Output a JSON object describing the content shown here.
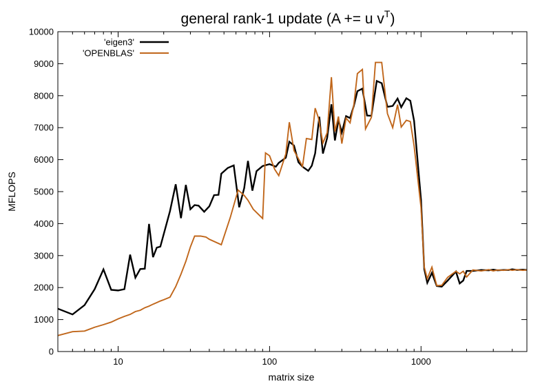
{
  "chart_data": {
    "type": "line",
    "title": "general rank-1 update (A += u v",
    "title_superscript": "T",
    "title_suffix": ")",
    "xlabel": "matrix size",
    "ylabel": "MFLOPS",
    "x_scale": "log",
    "xlim": [
      4,
      5000
    ],
    "ylim": [
      0,
      10000
    ],
    "x_major_ticks": [
      10,
      100,
      1000
    ],
    "x_tick_labels": [
      "10",
      "100",
      "1000"
    ],
    "y_ticks": [
      0,
      1000,
      2000,
      3000,
      4000,
      5000,
      6000,
      7000,
      8000,
      9000,
      10000
    ],
    "y_tick_labels": [
      "0",
      "1000",
      "2000",
      "3000",
      "4000",
      "5000",
      "6000",
      "7000",
      "8000",
      "9000",
      "10000"
    ],
    "grid": false,
    "legend_position": "top-left",
    "series": [
      {
        "name": "'eigen3'",
        "color": "#000000",
        "points": [
          [
            4,
            1340
          ],
          [
            5,
            1160
          ],
          [
            6,
            1450
          ],
          [
            7,
            1950
          ],
          [
            8,
            2570
          ],
          [
            9,
            1930
          ],
          [
            10,
            1910
          ],
          [
            11,
            1950
          ],
          [
            12,
            3030
          ],
          [
            13,
            2310
          ],
          [
            14,
            2580
          ],
          [
            15,
            2590
          ],
          [
            16,
            3990
          ],
          [
            17,
            2950
          ],
          [
            18,
            3250
          ],
          [
            19,
            3280
          ],
          [
            22,
            4390
          ],
          [
            24,
            5230
          ],
          [
            26,
            4170
          ],
          [
            28,
            5210
          ],
          [
            30,
            4450
          ],
          [
            32,
            4580
          ],
          [
            34,
            4560
          ],
          [
            37,
            4370
          ],
          [
            40,
            4540
          ],
          [
            43,
            4890
          ],
          [
            46,
            4900
          ],
          [
            48,
            5560
          ],
          [
            53,
            5740
          ],
          [
            58,
            5820
          ],
          [
            63,
            4510
          ],
          [
            68,
            5110
          ],
          [
            72,
            5960
          ],
          [
            77,
            5030
          ],
          [
            82,
            5640
          ],
          [
            90,
            5800
          ],
          [
            100,
            5860
          ],
          [
            110,
            5780
          ],
          [
            115,
            5900
          ],
          [
            128,
            6060
          ],
          [
            135,
            6560
          ],
          [
            145,
            6440
          ],
          [
            155,
            5920
          ],
          [
            165,
            5780
          ],
          [
            180,
            5650
          ],
          [
            190,
            5810
          ],
          [
            200,
            6200
          ],
          [
            213,
            7340
          ],
          [
            225,
            6190
          ],
          [
            240,
            6680
          ],
          [
            256,
            7730
          ],
          [
            270,
            6600
          ],
          [
            285,
            7240
          ],
          [
            300,
            6850
          ],
          [
            320,
            7360
          ],
          [
            340,
            7300
          ],
          [
            360,
            7680
          ],
          [
            380,
            8140
          ],
          [
            410,
            8220
          ],
          [
            440,
            7380
          ],
          [
            470,
            7370
          ],
          [
            510,
            8460
          ],
          [
            550,
            8390
          ],
          [
            600,
            7650
          ],
          [
            650,
            7680
          ],
          [
            700,
            7910
          ],
          [
            740,
            7640
          ],
          [
            800,
            7920
          ],
          [
            850,
            7840
          ],
          [
            900,
            7210
          ],
          [
            1000,
            4740
          ],
          [
            1050,
            2580
          ],
          [
            1100,
            2150
          ],
          [
            1180,
            2460
          ],
          [
            1270,
            2050
          ],
          [
            1370,
            2030
          ],
          [
            1500,
            2220
          ],
          [
            1700,
            2500
          ],
          [
            1800,
            2130
          ],
          [
            1900,
            2220
          ],
          [
            2000,
            2520
          ],
          [
            2200,
            2520
          ],
          [
            2500,
            2550
          ],
          [
            2800,
            2540
          ],
          [
            3000,
            2560
          ],
          [
            3200,
            2540
          ],
          [
            3500,
            2550
          ],
          [
            3800,
            2550
          ],
          [
            4000,
            2570
          ],
          [
            4300,
            2550
          ],
          [
            4700,
            2560
          ],
          [
            5000,
            2550
          ]
        ]
      },
      {
        "name": "'OPENBLAS'",
        "color": "#c0661a",
        "points": [
          [
            4,
            500
          ],
          [
            5,
            620
          ],
          [
            6,
            640
          ],
          [
            7,
            760
          ],
          [
            8,
            840
          ],
          [
            9,
            920
          ],
          [
            10,
            1020
          ],
          [
            11,
            1100
          ],
          [
            12,
            1160
          ],
          [
            13,
            1250
          ],
          [
            14,
            1290
          ],
          [
            15,
            1370
          ],
          [
            16,
            1420
          ],
          [
            17,
            1480
          ],
          [
            18,
            1530
          ],
          [
            19,
            1580
          ],
          [
            20,
            1620
          ],
          [
            22,
            1700
          ],
          [
            24,
            2030
          ],
          [
            26,
            2420
          ],
          [
            28,
            2820
          ],
          [
            30,
            3270
          ],
          [
            32,
            3610
          ],
          [
            35,
            3610
          ],
          [
            38,
            3580
          ],
          [
            40,
            3510
          ],
          [
            48,
            3340
          ],
          [
            55,
            4190
          ],
          [
            62,
            5050
          ],
          [
            68,
            4880
          ],
          [
            72,
            4730
          ],
          [
            78,
            4450
          ],
          [
            90,
            4160
          ],
          [
            94,
            6210
          ],
          [
            100,
            6120
          ],
          [
            108,
            5700
          ],
          [
            115,
            5500
          ],
          [
            128,
            6180
          ],
          [
            135,
            7170
          ],
          [
            145,
            6280
          ],
          [
            155,
            6030
          ],
          [
            165,
            5790
          ],
          [
            175,
            6660
          ],
          [
            190,
            6630
          ],
          [
            200,
            7610
          ],
          [
            210,
            7310
          ],
          [
            225,
            6520
          ],
          [
            240,
            6840
          ],
          [
            256,
            8580
          ],
          [
            270,
            6880
          ],
          [
            285,
            7350
          ],
          [
            300,
            6500
          ],
          [
            320,
            7300
          ],
          [
            340,
            7150
          ],
          [
            360,
            7710
          ],
          [
            380,
            8690
          ],
          [
            410,
            8820
          ],
          [
            430,
            6960
          ],
          [
            470,
            7320
          ],
          [
            500,
            9040
          ],
          [
            550,
            9040
          ],
          [
            600,
            7440
          ],
          [
            650,
            7000
          ],
          [
            700,
            7720
          ],
          [
            740,
            7020
          ],
          [
            800,
            7230
          ],
          [
            850,
            7190
          ],
          [
            900,
            6430
          ],
          [
            1000,
            4500
          ],
          [
            1050,
            2640
          ],
          [
            1100,
            2280
          ],
          [
            1180,
            2640
          ],
          [
            1270,
            2060
          ],
          [
            1370,
            2070
          ],
          [
            1500,
            2320
          ],
          [
            1700,
            2510
          ],
          [
            1800,
            2430
          ],
          [
            1900,
            2510
          ],
          [
            2000,
            2330
          ],
          [
            2200,
            2550
          ],
          [
            2500,
            2520
          ],
          [
            2800,
            2560
          ],
          [
            3000,
            2520
          ],
          [
            3200,
            2550
          ],
          [
            3500,
            2540
          ],
          [
            3800,
            2560
          ],
          [
            4000,
            2540
          ],
          [
            4300,
            2560
          ],
          [
            4700,
            2540
          ],
          [
            5000,
            2550
          ]
        ]
      }
    ]
  }
}
